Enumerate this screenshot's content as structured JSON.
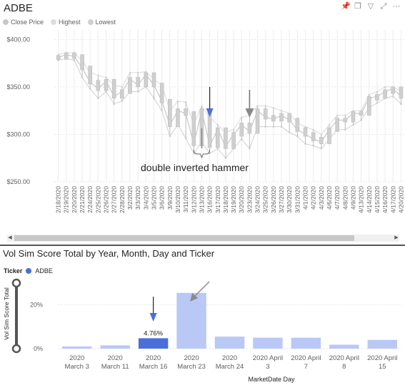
{
  "top": {
    "title": "ADBE",
    "toolbar_icons": [
      "pin-icon",
      "copy-icon",
      "filter-icon",
      "focus-icon",
      "more-icon"
    ],
    "legend": [
      {
        "label": "Close Price",
        "color": "#c8c8c8"
      },
      {
        "label": "Highest",
        "color": "#dcdcdc"
      },
      {
        "label": "Lowest",
        "color": "#d0d0d0"
      }
    ],
    "annotation": "double inverted hammer"
  },
  "bottom": {
    "title": "Vol Sim Score Total by Year, Month, Day and Ticker",
    "legend_title": "Ticker",
    "legend_item": {
      "label": "ADBE",
      "color": "#4a6fd8"
    },
    "xlabel": "MarketDate Day",
    "ylabel": "Vol Sim Score Total"
  },
  "chart_data": [
    {
      "type": "line",
      "title": "ADBE",
      "ylim": [
        250,
        410
      ],
      "yticks": [
        "$400.00",
        "$350.00",
        "$300.00",
        "$250.00"
      ],
      "ytick_values": [
        400,
        350,
        300,
        250
      ],
      "grid": true,
      "legend_position": "top-left",
      "x": [
        "2/18/2020",
        "2/19/2020",
        "2/20/2020",
        "2/21/2020",
        "2/24/2020",
        "2/25/2020",
        "2/26/2020",
        "2/27/2020",
        "2/28/2020",
        "3/2/2020",
        "3/3/2020",
        "3/4/2020",
        "3/5/2020",
        "3/6/2020",
        "3/9/2020",
        "3/10/2020",
        "3/11/2020",
        "3/12/2020",
        "3/13/2020",
        "3/16/2020",
        "3/17/2020",
        "3/18/2020",
        "3/19/2020",
        "3/20/2020",
        "3/23/2020",
        "3/24/2020",
        "3/25/2020",
        "3/26/2020",
        "3/27/2020",
        "3/30/2020",
        "3/31/2020",
        "4/1/2020",
        "4/2/2020",
        "4/3/2020",
        "4/6/2020",
        "4/7/2020",
        "4/8/2020",
        "4/9/2020",
        "4/13/2020",
        "4/14/2020",
        "4/15/2020",
        "4/16/2020",
        "4/17/2020",
        "4/20/2020"
      ],
      "series": [
        {
          "name": "Close Price",
          "values": [
            381,
            384,
            382,
            370,
            355,
            348,
            356,
            340,
            345,
            358,
            352,
            363,
            352,
            335,
            310,
            325,
            322,
            290,
            325,
            288,
            305,
            287,
            300,
            310,
            303,
            325,
            318,
            316,
            320,
            315,
            305,
            300,
            295,
            292,
            305,
            315,
            315,
            322,
            322,
            338,
            340,
            345,
            348,
            340
          ]
        },
        {
          "name": "Highest",
          "values": [
            384,
            386,
            386,
            378,
            365,
            362,
            360,
            352,
            350,
            365,
            365,
            366,
            358,
            352,
            325,
            335,
            334,
            310,
            330,
            318,
            310,
            302,
            305,
            318,
            320,
            330,
            330,
            328,
            325,
            322,
            312,
            308,
            305,
            300,
            310,
            320,
            320,
            325,
            325,
            342,
            345,
            350,
            350,
            345
          ]
        },
        {
          "name": "Lowest",
          "values": [
            378,
            380,
            378,
            360,
            348,
            338,
            345,
            332,
            335,
            345,
            345,
            350,
            338,
            325,
            298,
            310,
            296,
            280,
            292,
            280,
            285,
            275,
            285,
            295,
            285,
            308,
            308,
            308,
            308,
            302,
            298,
            290,
            288,
            285,
            295,
            305,
            305,
            310,
            315,
            328,
            333,
            338,
            340,
            332
          ]
        }
      ],
      "annotations": [
        "double inverted hammer"
      ]
    },
    {
      "type": "bar",
      "title": "Vol Sim Score Total by Year, Month, Day and Ticker",
      "categories": [
        [
          "2020",
          "March 3"
        ],
        [
          "2020",
          "March 11"
        ],
        [
          "2020",
          "March 16"
        ],
        [
          "2020",
          "March 23"
        ],
        [
          "2020",
          "March 24"
        ],
        [
          "2020 April",
          "3"
        ],
        [
          "2020 April",
          "7"
        ],
        [
          "2020 April",
          "8"
        ],
        [
          "2020 April",
          "15"
        ]
      ],
      "values": [
        1.0,
        1.5,
        4.76,
        25.5,
        5.5,
        5.0,
        5.0,
        1.8,
        4.0
      ],
      "highlight_index": 2,
      "data_labels": [
        {
          "index": 2,
          "text": "4.76%"
        }
      ],
      "xlabel": "MarketDate Day",
      "ylabel": "Vol Sim Score Total",
      "ylim": [
        0,
        30
      ],
      "yticks": [
        "20%",
        "0%"
      ],
      "ytick_values": [
        20,
        0
      ],
      "colors": {
        "normal": "#b9c8f5",
        "highlight": "#4a6fd8"
      }
    }
  ]
}
